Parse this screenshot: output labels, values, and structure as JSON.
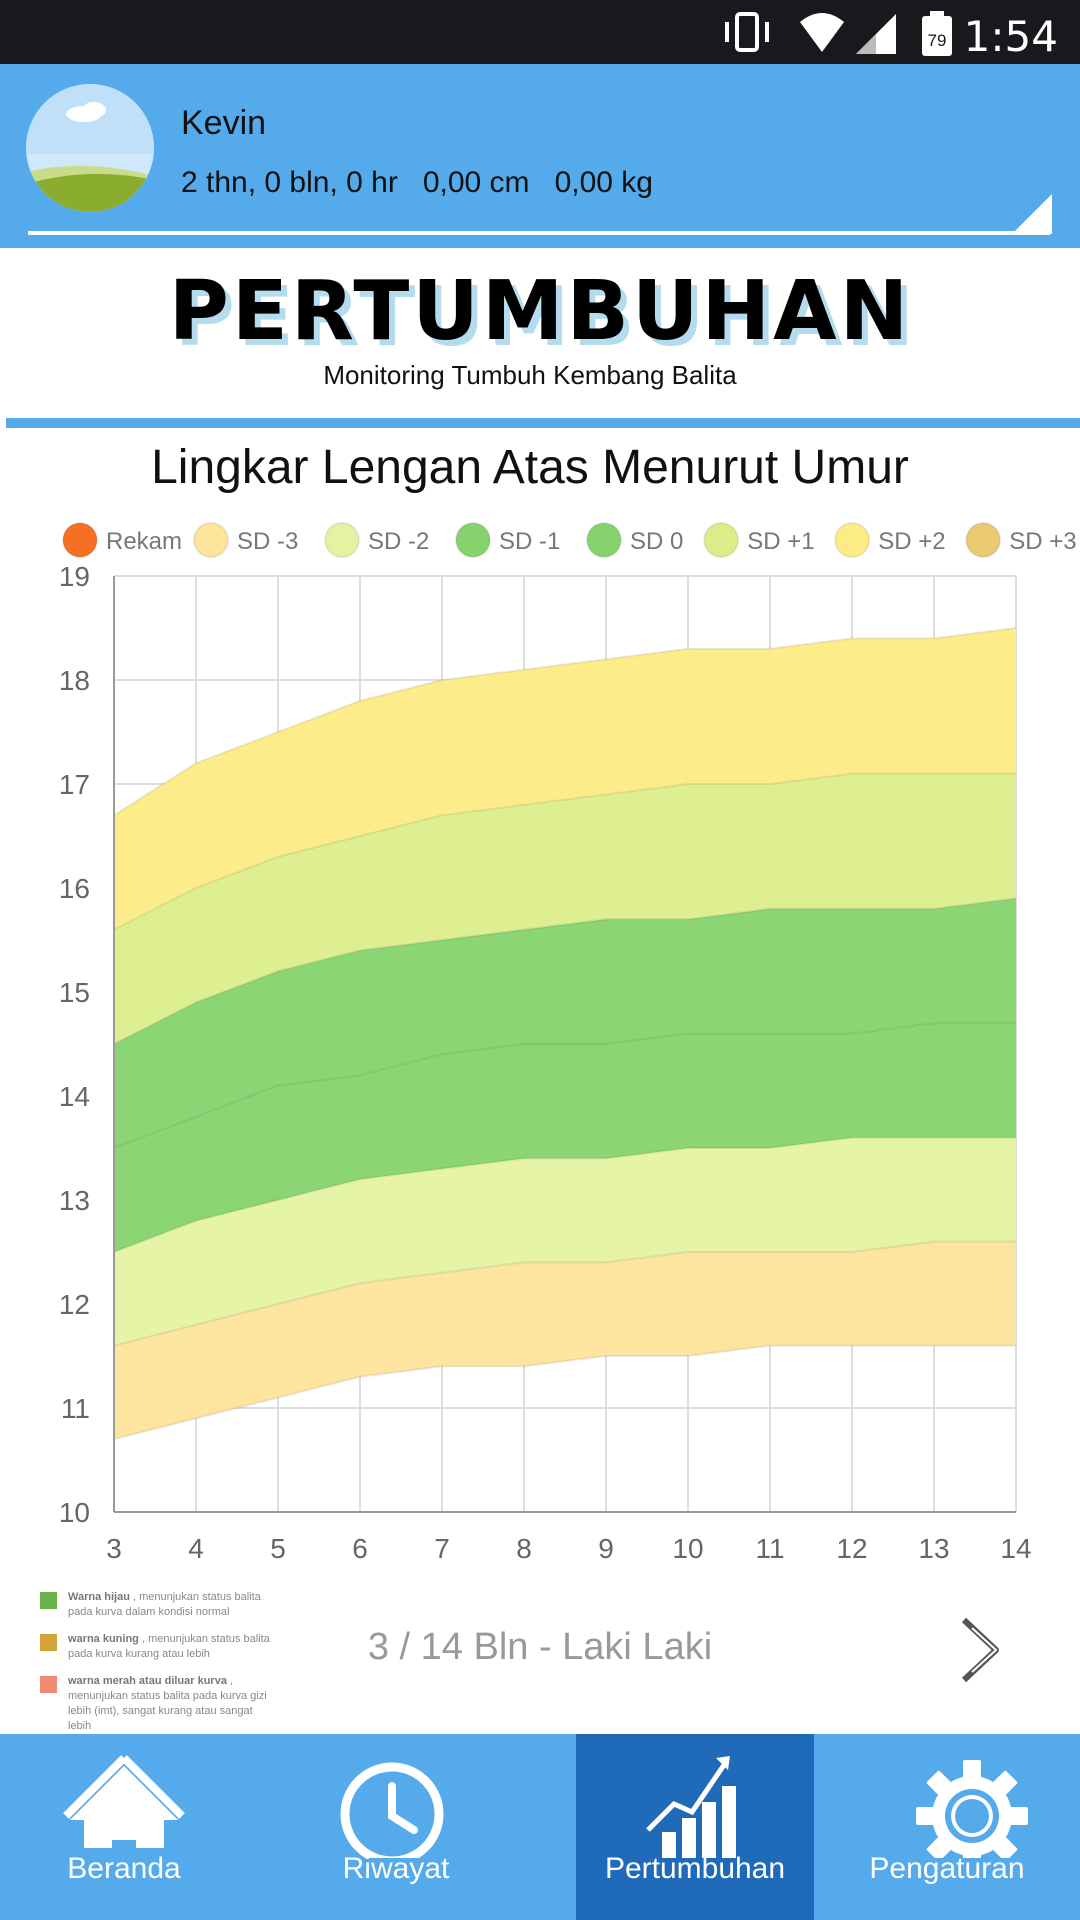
{
  "status_bar": {
    "time": "1:54",
    "battery": "79"
  },
  "profile": {
    "name": "Kevin",
    "age": "2 thn, 0 bln, 0 hr",
    "height": "0,00 cm",
    "weight": "0,00 kg"
  },
  "logo": {
    "title": "PERTUMBUHAN",
    "subtitle": "Monitoring Tumbuh Kembang Balita"
  },
  "chart_data": {
    "type": "area",
    "title": "Lingkar Lengan Atas Menurut Umur",
    "x": [
      3,
      4,
      5,
      6,
      7,
      8,
      9,
      10,
      11,
      12,
      13,
      14
    ],
    "xlim": [
      3,
      14
    ],
    "ylim": [
      10,
      19
    ],
    "yticks": [
      10,
      11,
      12,
      13,
      14,
      15,
      16,
      17,
      18,
      19
    ],
    "grid": true,
    "legend_position": "top",
    "legend": [
      {
        "name": "Rekam",
        "color": "#f57022"
      },
      {
        "name": "SD -3",
        "color": "#fde49a"
      },
      {
        "name": "SD -2",
        "color": "#e4f3a2"
      },
      {
        "name": "SD -1",
        "color": "#86d36e"
      },
      {
        "name": "SD 0",
        "color": "#86d36e"
      },
      {
        "name": "SD +1",
        "color": "#dbee8a"
      },
      {
        "name": "SD +2",
        "color": "#fdec84"
      },
      {
        "name": "SD +3",
        "color": "#ecca72"
      }
    ],
    "series": [
      {
        "name": "SD -3",
        "values": [
          10.7,
          10.9,
          11.1,
          11.3,
          11.4,
          11.4,
          11.5,
          11.5,
          11.6,
          11.6,
          11.6,
          11.6
        ]
      },
      {
        "name": "SD -2",
        "values": [
          11.6,
          11.8,
          12.0,
          12.2,
          12.3,
          12.4,
          12.4,
          12.5,
          12.5,
          12.5,
          12.6,
          12.6
        ]
      },
      {
        "name": "SD -1",
        "values": [
          12.5,
          12.8,
          13.0,
          13.2,
          13.3,
          13.4,
          13.4,
          13.5,
          13.5,
          13.6,
          13.6,
          13.6
        ]
      },
      {
        "name": "SD 0",
        "values": [
          13.5,
          13.8,
          14.1,
          14.2,
          14.4,
          14.5,
          14.5,
          14.6,
          14.6,
          14.6,
          14.7,
          14.7
        ]
      },
      {
        "name": "SD +1",
        "values": [
          14.5,
          14.9,
          15.2,
          15.4,
          15.5,
          15.6,
          15.7,
          15.7,
          15.8,
          15.8,
          15.8,
          15.9
        ]
      },
      {
        "name": "SD +2",
        "values": [
          15.6,
          16.0,
          16.3,
          16.5,
          16.7,
          16.8,
          16.9,
          17.0,
          17.0,
          17.1,
          17.1,
          17.1
        ]
      },
      {
        "name": "SD +3",
        "values": [
          16.7,
          17.2,
          17.5,
          17.8,
          18.0,
          18.1,
          18.2,
          18.3,
          18.3,
          18.4,
          18.4,
          18.5
        ]
      }
    ],
    "band_colors": [
      "#fde49a",
      "#e4f3a2",
      "#86d36e",
      "#86d36e",
      "#dbee8a",
      "#fdec84"
    ]
  },
  "notes": [
    {
      "color": "#6ab04c",
      "bold": "Warna hijau",
      "text": " , menunjukan status balita pada kurva dalam kondisi normal"
    },
    {
      "color": "#d4a43a",
      "bold": "warna kuning",
      "text": " , menunjukan status balita pada kurva kurang atau lebih"
    },
    {
      "color": "#f28b74",
      "bold": "warna merah atau diluar kurva",
      "text": " , menunjukan status balita pada kurva gizi lebih (imt), sangat kurang atau sangat lebih"
    }
  ],
  "period_label": "3 / 14 Bln - Laki Laki",
  "nav": [
    {
      "label": "Beranda",
      "icon": "home-icon"
    },
    {
      "label": "Riwayat",
      "icon": "clock-icon"
    },
    {
      "label": "Pertumbuhan",
      "icon": "growth-chart-icon",
      "active": true
    },
    {
      "label": "Pengaturan",
      "icon": "gear-icon"
    }
  ]
}
